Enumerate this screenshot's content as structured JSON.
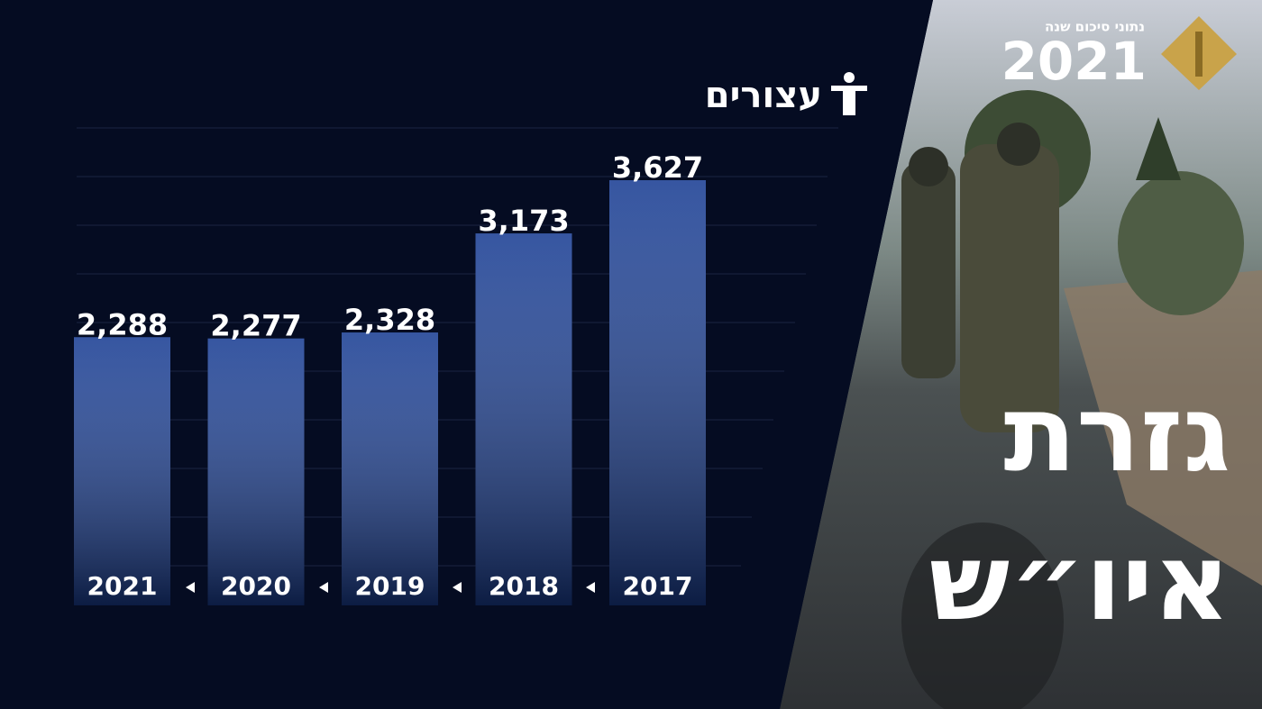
{
  "chart_data": {
    "type": "bar",
    "title": "עצורים",
    "categories": [
      "2021",
      "2020",
      "2019",
      "2018",
      "2017"
    ],
    "values": [
      2288,
      2277,
      2328,
      3173,
      3627
    ],
    "value_labels": [
      "2,288",
      "2,277",
      "2,328",
      "3,173",
      "3,627"
    ],
    "color": "#1b3f94"
  },
  "header": {
    "subtitle": "נתוני סיכום שנה",
    "year": "2021"
  },
  "headline": {
    "line1": "גזרת",
    "line2": "איו״ש"
  }
}
